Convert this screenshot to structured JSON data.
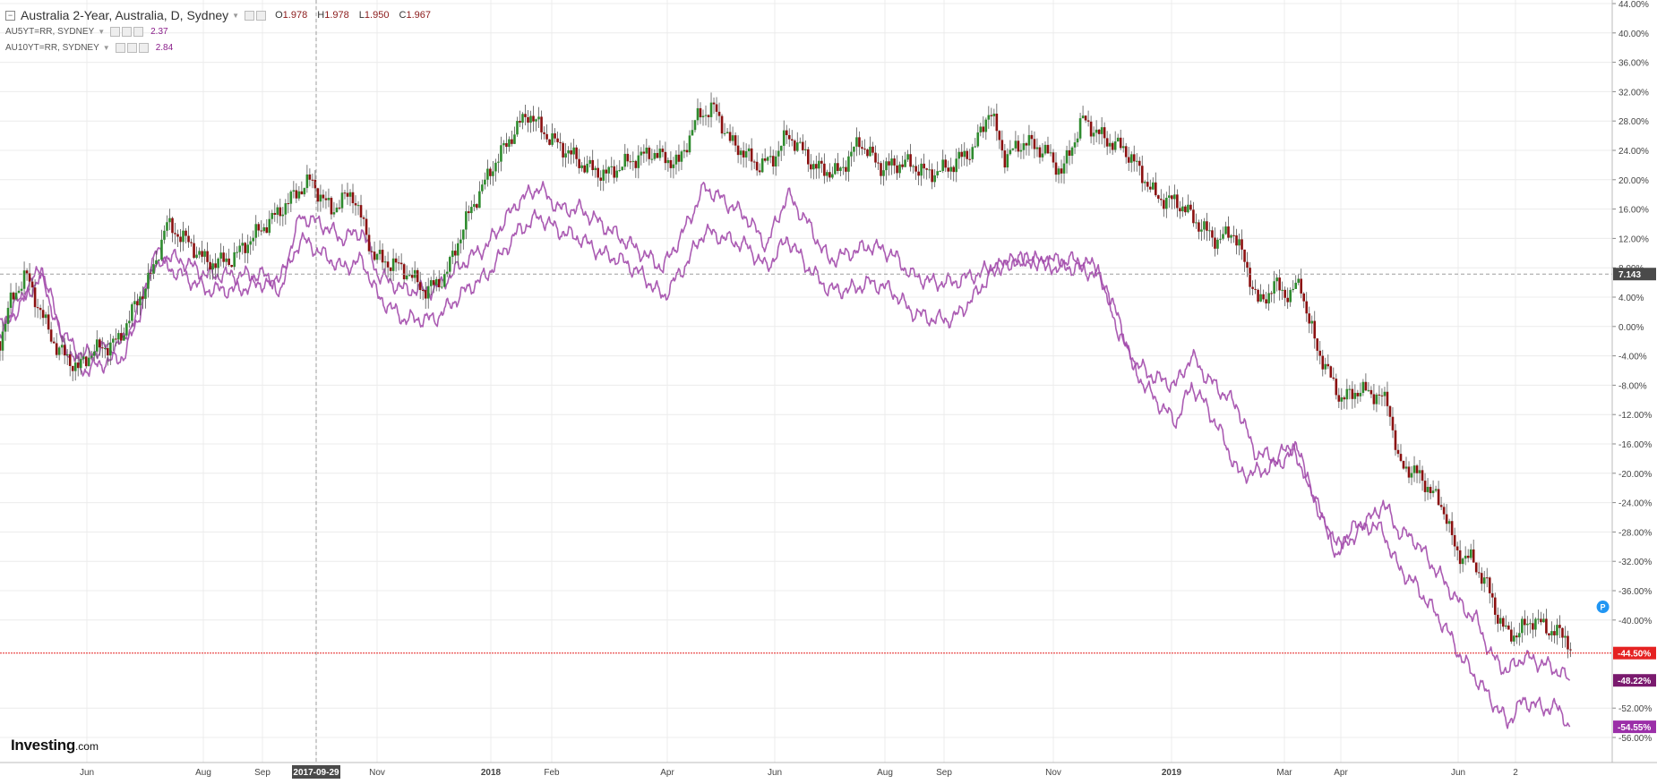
{
  "legend": {
    "main": {
      "title": "Australia 2-Year, Australia, D, Sydney",
      "o_label": "O",
      "o": "1.978",
      "h_label": "H",
      "h": "1.978",
      "l_label": "L",
      "l": "1.950",
      "c_label": "C",
      "c": "1.967"
    },
    "series": [
      {
        "name": "AU5YT=RR, SYDNEY",
        "value": "2.37"
      },
      {
        "name": "AU10YT=RR, SYDNEY",
        "value": "2.84"
      }
    ]
  },
  "brand": {
    "main": "Investing",
    "suffix": ".com"
  },
  "colors": {
    "up": "#2e8b2e",
    "down": "#8b1010",
    "overlay": "#a24aab",
    "current_line": "#e52222",
    "crosshair": "#9e9e9e"
  },
  "chart_data": {
    "type": "line",
    "title": "Australia 2-Year, Australia, D, Sydney",
    "y_unit": "% change",
    "ylim": [
      -57,
      44
    ],
    "y_ticks": [
      "44.00%",
      "40.00%",
      "36.00%",
      "32.00%",
      "28.00%",
      "24.00%",
      "20.00%",
      "16.00%",
      "12.00%",
      "8.00%",
      "4.00%",
      "0.00%",
      "-4.00%",
      "-8.00%",
      "-12.00%",
      "-16.00%",
      "-20.00%",
      "-24.00%",
      "-28.00%",
      "-32.00%",
      "-36.00%",
      "-40.00%",
      "-52.00%",
      "-56.00%"
    ],
    "x_ticks": [
      "Jun",
      "Aug",
      "Sep",
      "2017-09-29",
      "Nov",
      "2018",
      "Feb",
      "Apr",
      "Jun",
      "Aug",
      "Sep",
      "Nov",
      "2019",
      "Mar",
      "Apr",
      "Jun",
      "2"
    ],
    "grid": true,
    "crosshair": {
      "x_label": "2017-09-29",
      "y_label": "7.143"
    },
    "price_labels": [
      {
        "text": "-44.50%",
        "value": -44.5,
        "color": "#e52222"
      },
      {
        "text": "-48.22%",
        "value": -48.22,
        "color": "#7a1a6e"
      },
      {
        "text": "-54.55%",
        "value": -54.55,
        "color": "#9b2fa8"
      }
    ],
    "series": [
      {
        "type": "candlestick",
        "anchors": [
          [
            0,
            -2
          ],
          [
            10,
            3
          ],
          [
            25,
            7
          ],
          [
            55,
            -3
          ],
          [
            75,
            -6
          ],
          [
            90,
            -3
          ],
          [
            115,
            -2
          ],
          [
            135,
            4
          ],
          [
            148,
            8
          ],
          [
            160,
            14
          ],
          [
            175,
            12
          ],
          [
            200,
            9
          ],
          [
            225,
            9
          ],
          [
            255,
            14
          ],
          [
            280,
            17
          ],
          [
            300,
            20
          ],
          [
            320,
            16
          ],
          [
            340,
            18
          ],
          [
            360,
            10
          ],
          [
            385,
            8
          ],
          [
            410,
            5
          ],
          [
            430,
            7
          ],
          [
            455,
            16
          ],
          [
            475,
            22
          ],
          [
            495,
            26
          ],
          [
            510,
            29
          ],
          [
            530,
            26
          ],
          [
            560,
            22
          ],
          [
            585,
            21
          ],
          [
            605,
            22
          ],
          [
            630,
            24
          ],
          [
            655,
            22
          ],
          [
            675,
            29
          ],
          [
            690,
            30
          ],
          [
            705,
            25
          ],
          [
            730,
            22
          ],
          [
            745,
            23
          ],
          [
            760,
            26
          ],
          [
            785,
            22
          ],
          [
            810,
            21
          ],
          [
            830,
            25
          ],
          [
            850,
            22
          ],
          [
            875,
            22
          ],
          [
            895,
            21
          ],
          [
            920,
            22
          ],
          [
            940,
            24
          ],
          [
            955,
            30
          ],
          [
            970,
            23
          ],
          [
            990,
            25
          ],
          [
            1010,
            24
          ],
          [
            1025,
            21
          ],
          [
            1045,
            28
          ],
          [
            1065,
            26
          ],
          [
            1085,
            24
          ],
          [
            1100,
            21
          ],
          [
            1115,
            18
          ],
          [
            1135,
            17
          ],
          [
            1155,
            14
          ],
          [
            1175,
            12
          ],
          [
            1190,
            13
          ],
          [
            1205,
            7
          ],
          [
            1215,
            3
          ],
          [
            1230,
            6
          ],
          [
            1245,
            4
          ],
          [
            1255,
            6
          ],
          [
            1262,
            1
          ],
          [
            1272,
            -3
          ],
          [
            1285,
            -7
          ],
          [
            1295,
            -10
          ],
          [
            1310,
            -9
          ],
          [
            1325,
            -9
          ],
          [
            1340,
            -10
          ],
          [
            1350,
            -19
          ],
          [
            1365,
            -20
          ],
          [
            1380,
            -22
          ],
          [
            1395,
            -25
          ],
          [
            1405,
            -31
          ],
          [
            1420,
            -32
          ],
          [
            1435,
            -35
          ],
          [
            1445,
            -39
          ],
          [
            1455,
            -42
          ],
          [
            1465,
            -42
          ],
          [
            1480,
            -40
          ],
          [
            1495,
            -41
          ],
          [
            1510,
            -42
          ],
          [
            1518,
            -44.5
          ]
        ]
      },
      {
        "name": "AU5YT=RR, SYDNEY",
        "anchors": [
          [
            0,
            0
          ],
          [
            20,
            4
          ],
          [
            40,
            8
          ],
          [
            60,
            -1
          ],
          [
            80,
            -4
          ],
          [
            100,
            -3
          ],
          [
            120,
            -2
          ],
          [
            135,
            3
          ],
          [
            150,
            10
          ],
          [
            175,
            9
          ],
          [
            200,
            7
          ],
          [
            230,
            7
          ],
          [
            255,
            7
          ],
          [
            270,
            6
          ],
          [
            290,
            15
          ],
          [
            310,
            14
          ],
          [
            330,
            12
          ],
          [
            350,
            13
          ],
          [
            365,
            7
          ],
          [
            390,
            5
          ],
          [
            420,
            5
          ],
          [
            450,
            9
          ],
          [
            470,
            11
          ],
          [
            485,
            14
          ],
          [
            500,
            17
          ],
          [
            520,
            19
          ],
          [
            540,
            16
          ],
          [
            560,
            16
          ],
          [
            580,
            14
          ],
          [
            600,
            12
          ],
          [
            620,
            10
          ],
          [
            640,
            8
          ],
          [
            660,
            13
          ],
          [
            680,
            19
          ],
          [
            700,
            17
          ],
          [
            720,
            15
          ],
          [
            740,
            11
          ],
          [
            760,
            18
          ],
          [
            780,
            14
          ],
          [
            800,
            9
          ],
          [
            820,
            10
          ],
          [
            840,
            11
          ],
          [
            860,
            10
          ],
          [
            880,
            7
          ],
          [
            900,
            6
          ],
          [
            920,
            6
          ],
          [
            940,
            7
          ],
          [
            960,
            8
          ],
          [
            980,
            9
          ],
          [
            1000,
            9
          ],
          [
            1020,
            9
          ],
          [
            1040,
            9
          ],
          [
            1060,
            8
          ],
          [
            1080,
            -1
          ],
          [
            1095,
            -5
          ],
          [
            1115,
            -7
          ],
          [
            1135,
            -8
          ],
          [
            1150,
            -4
          ],
          [
            1165,
            -7
          ],
          [
            1180,
            -9
          ],
          [
            1195,
            -11
          ],
          [
            1210,
            -17
          ],
          [
            1230,
            -18
          ],
          [
            1250,
            -16
          ],
          [
            1270,
            -24
          ],
          [
            1290,
            -30
          ],
          [
            1310,
            -27
          ],
          [
            1325,
            -26
          ],
          [
            1335,
            -24
          ],
          [
            1350,
            -28
          ],
          [
            1365,
            -29
          ],
          [
            1380,
            -32
          ],
          [
            1395,
            -35
          ],
          [
            1410,
            -38
          ],
          [
            1425,
            -40
          ],
          [
            1440,
            -45
          ],
          [
            1455,
            -47
          ],
          [
            1470,
            -45
          ],
          [
            1490,
            -46
          ],
          [
            1505,
            -47
          ],
          [
            1515,
            -48.22
          ]
        ]
      },
      {
        "name": "AU10YT=RR, SYDNEY",
        "anchors": [
          [
            0,
            -1
          ],
          [
            20,
            3
          ],
          [
            40,
            7
          ],
          [
            60,
            -2
          ],
          [
            80,
            -6
          ],
          [
            100,
            -5
          ],
          [
            120,
            -4
          ],
          [
            135,
            2
          ],
          [
            150,
            9
          ],
          [
            175,
            7
          ],
          [
            200,
            5
          ],
          [
            230,
            5
          ],
          [
            255,
            6
          ],
          [
            270,
            5
          ],
          [
            290,
            12
          ],
          [
            310,
            10
          ],
          [
            330,
            8
          ],
          [
            350,
            9
          ],
          [
            365,
            4
          ],
          [
            390,
            1
          ],
          [
            420,
            1
          ],
          [
            450,
            5
          ],
          [
            470,
            7
          ],
          [
            485,
            10
          ],
          [
            500,
            13
          ],
          [
            520,
            15
          ],
          [
            540,
            13
          ],
          [
            560,
            12
          ],
          [
            580,
            10
          ],
          [
            600,
            9
          ],
          [
            620,
            7
          ],
          [
            640,
            4
          ],
          [
            660,
            8
          ],
          [
            680,
            13
          ],
          [
            700,
            12
          ],
          [
            720,
            11
          ],
          [
            740,
            8
          ],
          [
            760,
            12
          ],
          [
            780,
            8
          ],
          [
            800,
            5
          ],
          [
            820,
            5
          ],
          [
            840,
            6
          ],
          [
            860,
            5
          ],
          [
            880,
            2
          ],
          [
            900,
            1
          ],
          [
            920,
            1
          ],
          [
            940,
            4
          ],
          [
            960,
            8
          ],
          [
            980,
            9
          ],
          [
            1000,
            9
          ],
          [
            1020,
            8
          ],
          [
            1040,
            8
          ],
          [
            1060,
            7
          ],
          [
            1080,
            1
          ],
          [
            1095,
            -6
          ],
          [
            1115,
            -10
          ],
          [
            1135,
            -13
          ],
          [
            1150,
            -8
          ],
          [
            1165,
            -11
          ],
          [
            1180,
            -15
          ],
          [
            1195,
            -20
          ],
          [
            1210,
            -20
          ],
          [
            1230,
            -19
          ],
          [
            1250,
            -17
          ],
          [
            1270,
            -24
          ],
          [
            1290,
            -31
          ],
          [
            1310,
            -28
          ],
          [
            1325,
            -27
          ],
          [
            1335,
            -28
          ],
          [
            1350,
            -33
          ],
          [
            1365,
            -35
          ],
          [
            1380,
            -38
          ],
          [
            1395,
            -41
          ],
          [
            1410,
            -45
          ],
          [
            1425,
            -48
          ],
          [
            1440,
            -51
          ],
          [
            1455,
            -54
          ],
          [
            1470,
            -51
          ],
          [
            1490,
            -52
          ],
          [
            1505,
            -52
          ],
          [
            1515,
            -54.55
          ]
        ]
      }
    ]
  }
}
